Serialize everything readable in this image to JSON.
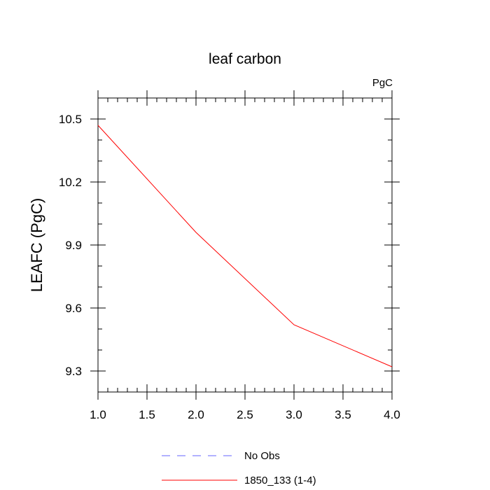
{
  "chart_data": {
    "type": "line",
    "title": "leaf carbon",
    "units_label": "PgC",
    "xlabel": "",
    "ylabel": "LEAFC  (PgC)",
    "xlim": [
      1.0,
      4.0
    ],
    "ylim": [
      9.2,
      10.6
    ],
    "x_ticks": [
      "1.0",
      "1.5",
      "2.0",
      "2.5",
      "3.0",
      "3.5",
      "4.0"
    ],
    "y_ticks": [
      "9.3",
      "9.6",
      "9.9",
      "10.2",
      "10.5"
    ],
    "grid": false,
    "series": [
      {
        "name": "1850_133 (1-4)",
        "color": "#ff0000",
        "dash": "solid",
        "x": [
          1,
          2,
          3,
          4
        ],
        "y": [
          10.47,
          9.96,
          9.52,
          9.32
        ]
      }
    ],
    "legend": [
      {
        "label": "No Obs",
        "color": "#6666ff",
        "dash": "dashed"
      },
      {
        "label": "1850_133 (1-4)",
        "color": "#ff0000",
        "dash": "solid"
      }
    ],
    "legend_position": "bottom"
  }
}
